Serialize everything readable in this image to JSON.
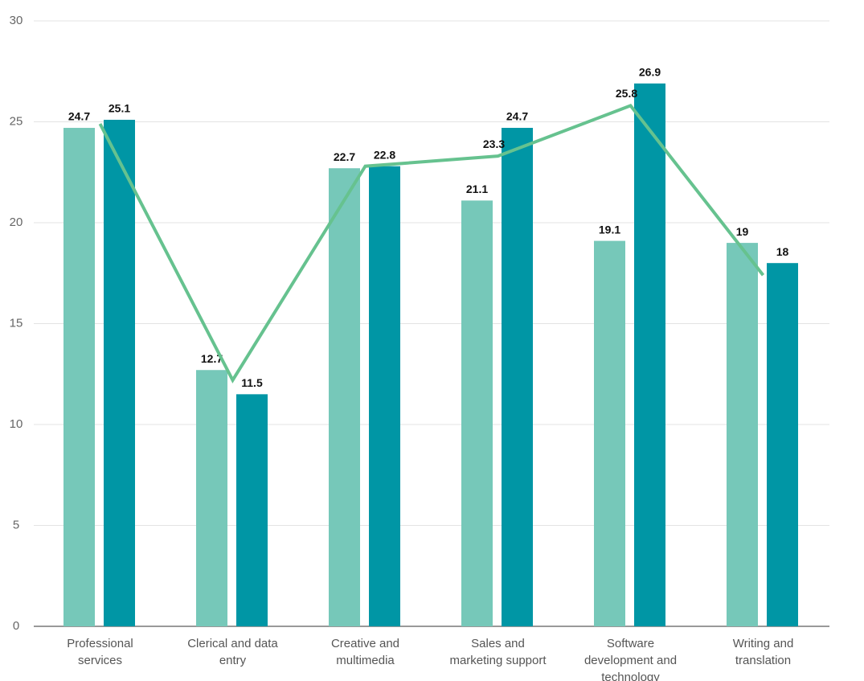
{
  "chart_data": {
    "type": "bar",
    "categories": [
      "Professional services",
      "Clerical and data entry",
      "Creative and multimedia",
      "Sales and marketing support",
      "Software development and technology",
      "Writing and translation"
    ],
    "series": [
      {
        "color": "#76c8b9",
        "values": [
          24.7,
          12.7,
          22.7,
          21.1,
          19.1,
          19
        ]
      },
      {
        "color": "#0096a5",
        "values": [
          25.1,
          11.5,
          22.8,
          24.7,
          26.9,
          18
        ]
      },
      {
        "type": "line",
        "color": "#66c28f",
        "values": [
          24.9,
          12.2,
          22.8,
          23.3,
          25.8,
          17.4
        ],
        "value_labels": [
          null,
          null,
          null,
          "23.3",
          "25.8",
          null
        ]
      }
    ],
    "ylim": [
      0,
      30
    ],
    "yticks": [
      0,
      5,
      10,
      15,
      20,
      25,
      30
    ],
    "grid": true
  }
}
